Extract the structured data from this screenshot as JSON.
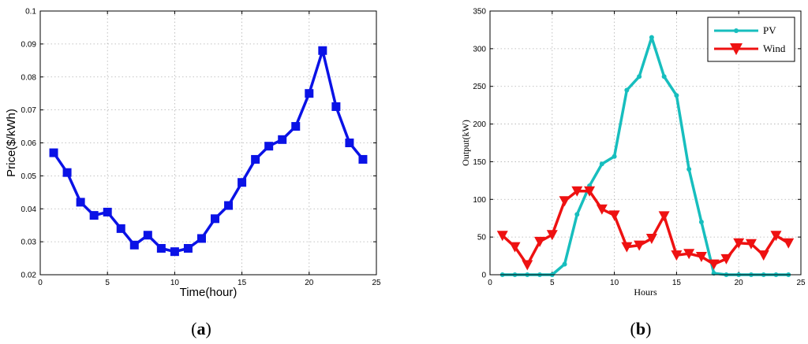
{
  "chart_data": [
    {
      "type": "line",
      "caption_letter": "a",
      "title": "",
      "xlabel": "Time(hour)",
      "ylabel": "Price($/kWh)",
      "xlim": [
        0,
        25
      ],
      "ylim": [
        0.02,
        0.1
      ],
      "xticks": [
        0,
        5,
        10,
        15,
        20,
        25
      ],
      "yticks": [
        0.02,
        0.03,
        0.04,
        0.05,
        0.06,
        0.07,
        0.08,
        0.09,
        0.1
      ],
      "grid": true,
      "x": [
        1,
        2,
        3,
        4,
        5,
        6,
        7,
        8,
        9,
        10,
        11,
        12,
        13,
        14,
        15,
        16,
        17,
        18,
        19,
        20,
        21,
        22,
        23,
        24
      ],
      "series": [
        {
          "name": "",
          "color": "#0a12e6",
          "marker": "square",
          "values": [
            0.057,
            0.051,
            0.042,
            0.038,
            0.039,
            0.034,
            0.029,
            0.032,
            0.028,
            0.027,
            0.028,
            0.031,
            0.037,
            0.041,
            0.048,
            0.055,
            0.059,
            0.061,
            0.065,
            0.075,
            0.088,
            0.071,
            0.06,
            0.055
          ]
        }
      ]
    },
    {
      "type": "line",
      "caption_letter": "b",
      "title": "",
      "xlabel": "Hours",
      "ylabel": "Output(kW)",
      "xlim": [
        0,
        25
      ],
      "ylim": [
        0,
        350
      ],
      "xticks": [
        0,
        5,
        10,
        15,
        20,
        25
      ],
      "yticks": [
        0,
        50,
        100,
        150,
        200,
        250,
        300,
        350
      ],
      "grid": true,
      "legend": "top-right",
      "x": [
        1,
        2,
        3,
        4,
        5,
        6,
        7,
        8,
        9,
        10,
        11,
        12,
        13,
        14,
        15,
        16,
        17,
        18,
        19,
        20,
        21,
        22,
        23,
        24
      ],
      "series": [
        {
          "name": "PV",
          "color": "#17bebe",
          "marker": "dot",
          "values": [
            0,
            0,
            0,
            0,
            0,
            14,
            80,
            118,
            147,
            157,
            245,
            263,
            315,
            263,
            238,
            140,
            70,
            2,
            0,
            0,
            0,
            0,
            0,
            0
          ]
        },
        {
          "name": "Wind",
          "color": "#ee1111",
          "marker": "triangle-down",
          "values": [
            52,
            37,
            13,
            44,
            53,
            98,
            111,
            111,
            87,
            79,
            37,
            39,
            48,
            78,
            26,
            28,
            24,
            14,
            21,
            42,
            41,
            26,
            52,
            42
          ]
        }
      ]
    }
  ]
}
